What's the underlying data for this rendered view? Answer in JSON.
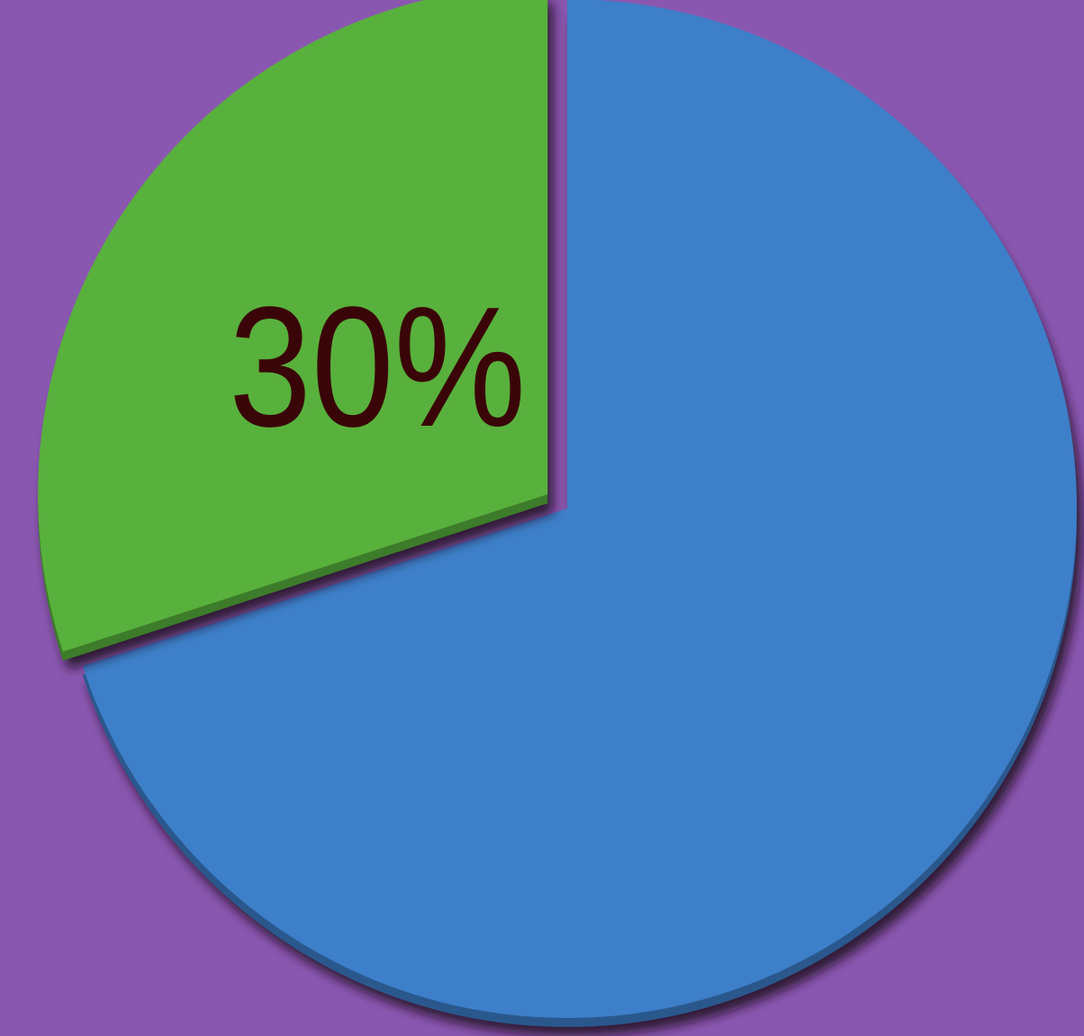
{
  "chart_data": {
    "type": "pie",
    "slices": [
      {
        "value": 70,
        "color": "#3d7fc9",
        "label": ""
      },
      {
        "value": 30,
        "color": "#58b13c",
        "label": "30%",
        "exploded": true
      }
    ],
    "background_color": "#8a57b0",
    "label_color": "#3a0508"
  }
}
